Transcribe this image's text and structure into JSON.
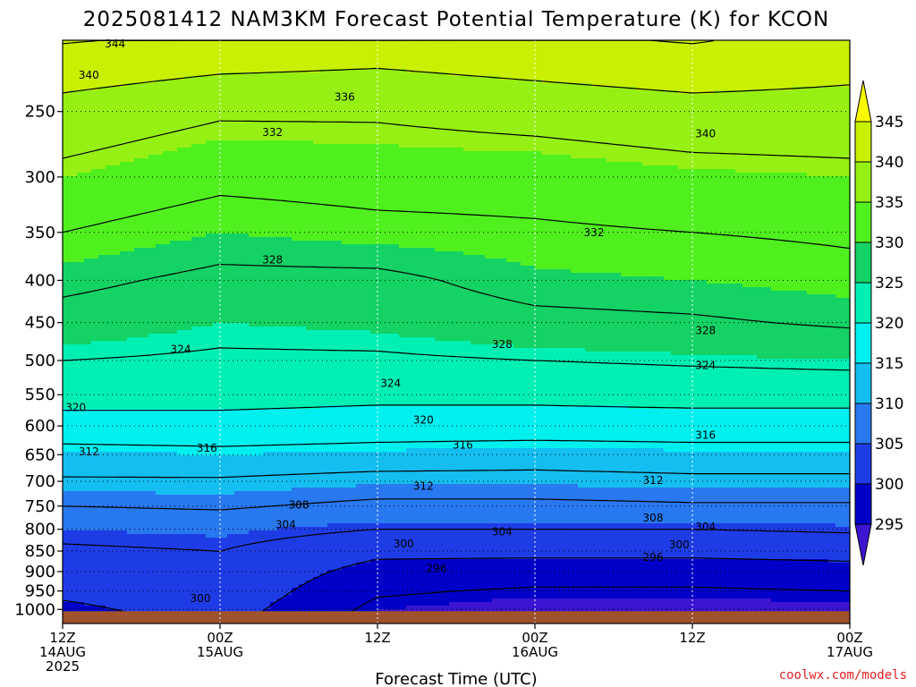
{
  "chart_data": {
    "type": "heatmap",
    "title": "2025081412 NAM3KM Forecast Potential Temperature (K) for KCON",
    "xlabel": "Forecast Time (UTC)",
    "ylabel": "",
    "credit": "coolwx.com/models",
    "y_scale": "log",
    "ylim": [
      1040,
      205
    ],
    "xlim": [
      0,
      60
    ],
    "grid": true,
    "pressure_ticks": [
      250,
      300,
      350,
      400,
      450,
      500,
      550,
      600,
      650,
      700,
      750,
      800,
      850,
      900,
      950,
      1000
    ],
    "x_ticks": [
      {
        "hour": 0,
        "lines": [
          "12Z",
          "14AUG",
          "2025"
        ]
      },
      {
        "hour": 12,
        "lines": [
          "00Z",
          "15AUG"
        ]
      },
      {
        "hour": 24,
        "lines": [
          "12Z"
        ]
      },
      {
        "hour": 36,
        "lines": [
          "00Z",
          "16AUG"
        ]
      },
      {
        "hour": 48,
        "lines": [
          "12Z"
        ]
      },
      {
        "hour": 60,
        "lines": [
          "00Z",
          "17AUG"
        ]
      }
    ],
    "colorbar": {
      "levels": [
        295,
        300,
        305,
        310,
        315,
        320,
        325,
        330,
        335,
        340,
        345
      ],
      "colors": [
        "#3c14d2",
        "#0000c8",
        "#1e3ce6",
        "#2878f0",
        "#14bef0",
        "#00f0f0",
        "#00f0b4",
        "#14d264",
        "#50f01e",
        "#96f014",
        "#c8f000",
        "#fafa00"
      ]
    },
    "isotherm_levels": [
      292,
      296,
      300,
      304,
      308,
      312,
      316,
      320,
      324,
      328,
      332,
      336,
      340,
      344
    ],
    "series": [
      {
        "hour": 0,
        "pressure": [
          1000,
          950,
          900,
          850,
          800,
          750,
          700,
          650,
          600,
          550,
          500,
          450,
          400,
          350,
          300,
          250,
          200
        ],
        "theta": [
          299,
          301,
          302,
          303.5,
          305,
          308,
          311.5,
          314.5,
          318.5,
          321.5,
          324,
          326.5,
          329,
          332,
          335,
          338.5,
          345
        ]
      },
      {
        "hour": 12,
        "pressure": [
          1000,
          950,
          900,
          850,
          800,
          750,
          700,
          650,
          600,
          550,
          500,
          450,
          400,
          350,
          300,
          250,
          200
        ],
        "theta": [
          302,
          303,
          303.5,
          304,
          305.5,
          308.5,
          311.5,
          315,
          318.5,
          321.5,
          323.5,
          325,
          327,
          330,
          333,
          336.5,
          344
        ]
      },
      {
        "hour": 24,
        "pressure": [
          1000,
          950,
          900,
          850,
          800,
          750,
          700,
          650,
          600,
          550,
          500,
          450,
          400,
          350,
          300,
          250,
          200
        ],
        "theta": [
          295,
          296.5,
          298.5,
          301,
          304,
          307,
          310.5,
          314.5,
          318,
          321,
          323.5,
          325.5,
          327,
          331,
          333.5,
          336.5,
          343
        ]
      },
      {
        "hour": 36,
        "pressure": [
          1000,
          950,
          900,
          850,
          800,
          750,
          700,
          650,
          600,
          550,
          500,
          450,
          400,
          350,
          300,
          250,
          200
        ],
        "theta": [
          294,
          295.5,
          298,
          301,
          304,
          307,
          310.5,
          314,
          318,
          321,
          324,
          327,
          329.5,
          331.5,
          333.5,
          337.5,
          344
        ]
      },
      {
        "hour": 48,
        "pressure": [
          1000,
          950,
          900,
          850,
          800,
          750,
          700,
          650,
          600,
          550,
          500,
          450,
          400,
          350,
          300,
          250,
          200
        ],
        "theta": [
          294,
          295.5,
          298,
          301,
          304,
          307.5,
          311,
          314.5,
          318,
          321.5,
          324.5,
          327.5,
          330,
          332,
          334.5,
          338.5,
          345
        ]
      },
      {
        "hour": 60,
        "pressure": [
          1000,
          950,
          900,
          850,
          800,
          750,
          700,
          650,
          600,
          550,
          500,
          450,
          400,
          350,
          300,
          250,
          200
        ],
        "theta": [
          294.5,
          296,
          298.5,
          301.5,
          304.5,
          307.5,
          311,
          314.5,
          318,
          321.5,
          325,
          328.5,
          331,
          332.5,
          335,
          338.5,
          343
        ]
      }
    ],
    "contour_labels": [
      {
        "text": "344",
        "hour": 4,
        "pressure": 207
      },
      {
        "text": "340",
        "hour": 2,
        "pressure": 226
      },
      {
        "text": "336",
        "hour": 21.5,
        "pressure": 240
      },
      {
        "text": "332",
        "hour": 16,
        "pressure": 265
      },
      {
        "text": "340",
        "hour": 49,
        "pressure": 266
      },
      {
        "text": "332",
        "hour": 40.5,
        "pressure": 350
      },
      {
        "text": "328",
        "hour": 16,
        "pressure": 378
      },
      {
        "text": "328",
        "hour": 49,
        "pressure": 460
      },
      {
        "text": "324",
        "hour": 9,
        "pressure": 485
      },
      {
        "text": "328",
        "hour": 33.5,
        "pressure": 478
      },
      {
        "text": "324",
        "hour": 49,
        "pressure": 507
      },
      {
        "text": "324",
        "hour": 25,
        "pressure": 533
      },
      {
        "text": "320",
        "hour": 1,
        "pressure": 570
      },
      {
        "text": "320",
        "hour": 27.5,
        "pressure": 590
      },
      {
        "text": "316",
        "hour": 11,
        "pressure": 638
      },
      {
        "text": "316",
        "hour": 30.5,
        "pressure": 633
      },
      {
        "text": "316",
        "hour": 49,
        "pressure": 616
      },
      {
        "text": "312",
        "hour": 2,
        "pressure": 645
      },
      {
        "text": "312",
        "hour": 27.5,
        "pressure": 710
      },
      {
        "text": "312",
        "hour": 45,
        "pressure": 698
      },
      {
        "text": "308",
        "hour": 18,
        "pressure": 748
      },
      {
        "text": "308",
        "hour": 45,
        "pressure": 775
      },
      {
        "text": "304",
        "hour": 17,
        "pressure": 790
      },
      {
        "text": "304",
        "hour": 33.5,
        "pressure": 806
      },
      {
        "text": "304",
        "hour": 49,
        "pressure": 795
      },
      {
        "text": "300",
        "hour": 26,
        "pressure": 833
      },
      {
        "text": "300",
        "hour": 47,
        "pressure": 835
      },
      {
        "text": "296",
        "hour": 28.5,
        "pressure": 892
      },
      {
        "text": "296",
        "hour": 45,
        "pressure": 865
      },
      {
        "text": "300",
        "hour": 10.5,
        "pressure": 970
      }
    ]
  }
}
